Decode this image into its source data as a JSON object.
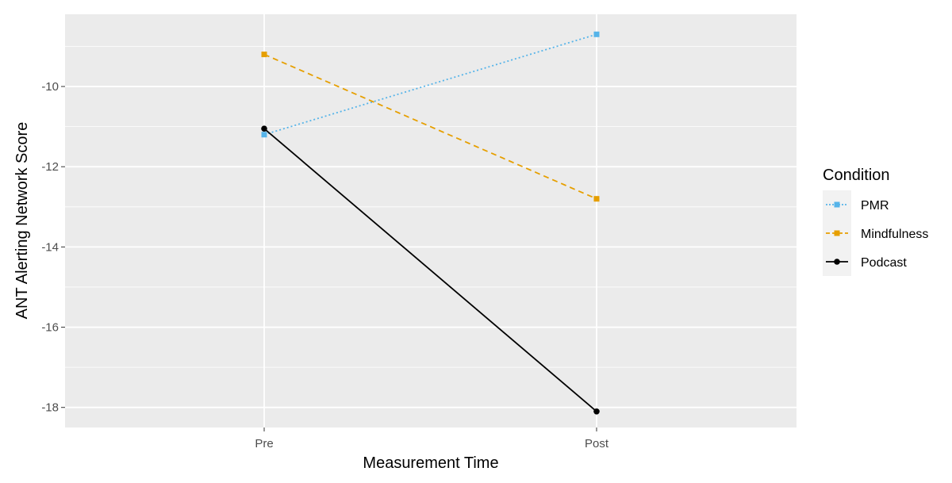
{
  "chart_data": {
    "type": "line",
    "title": "",
    "xlabel": "Measurement Time",
    "ylabel": "ANT Alerting Network Score",
    "categories": [
      "Pre",
      "Post"
    ],
    "ylim": [
      -18.5,
      -8.2
    ],
    "yticks": [
      -10,
      -12,
      -14,
      -16,
      -18
    ],
    "ytick_labels": [
      "-10",
      "-12",
      "-14",
      "-16",
      "-18"
    ],
    "grid": true,
    "legend_title": "Condition",
    "legend_position": "right",
    "series": [
      {
        "name": "PMR",
        "values": [
          -11.2,
          -8.7
        ],
        "color": "#56B4E9",
        "linestyle": "dotted",
        "marker": "square"
      },
      {
        "name": "Mindfulness",
        "values": [
          -9.2,
          -12.8
        ],
        "color": "#E69F00",
        "linestyle": "dashed",
        "marker": "square"
      },
      {
        "name": "Podcast",
        "values": [
          -11.05,
          -18.1
        ],
        "color": "#000000",
        "linestyle": "solid",
        "marker": "circle"
      }
    ]
  }
}
